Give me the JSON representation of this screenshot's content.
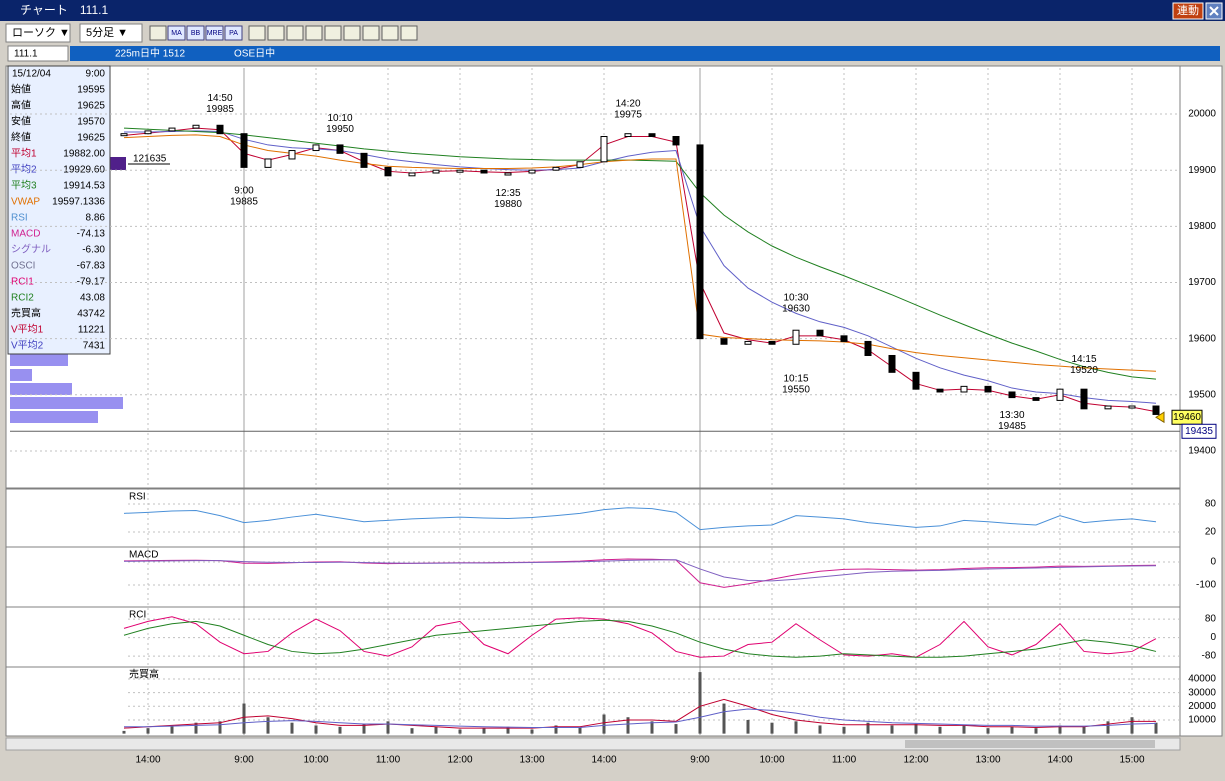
{
  "window": {
    "title": "チャート　111.1",
    "sync_button": "連動"
  },
  "toolbar": {
    "chart_type": "ローソク ▼",
    "interval": "5分足 ▼",
    "icons": [
      "MA",
      "BB",
      "MRE",
      "PA"
    ]
  },
  "symbol_bar": {
    "code": "111.1",
    "name": "225m日中 1512",
    "session": "OSE日中"
  },
  "info_panel": {
    "date": "15/12/04",
    "time": "9:00",
    "rows": [
      {
        "label": "始値",
        "value": "19595",
        "color": "#000000"
      },
      {
        "label": "高値",
        "value": "19625",
        "color": "#000000"
      },
      {
        "label": "安値",
        "value": "19570",
        "color": "#000000"
      },
      {
        "label": "終値",
        "value": "19625",
        "color": "#000000"
      },
      {
        "label": "平均1",
        "value": "19882.00",
        "color": "#c00030"
      },
      {
        "label": "平均2",
        "value": "19929.60",
        "color": "#4040c0"
      },
      {
        "label": "平均3",
        "value": "19914.53",
        "color": "#208020"
      },
      {
        "label": "VWAP",
        "value": "19597.1336",
        "color": "#e07000"
      },
      {
        "label": "RSI",
        "value": "8.86",
        "color": "#5090d0"
      },
      {
        "label": "MACD",
        "value": "-74.13",
        "color": "#d02090"
      },
      {
        "label": "シグナル",
        "value": "-6.30",
        "color": "#8060c0"
      },
      {
        "label": "OSCI",
        "value": "-67.83",
        "color": "#707090"
      },
      {
        "label": "RCI1",
        "value": "-79.17",
        "color": "#e00070"
      },
      {
        "label": "RCI2",
        "value": "43.08",
        "color": "#208020"
      },
      {
        "label": "売買高",
        "value": "43742",
        "color": "#000000"
      },
      {
        "label": "V平均1",
        "value": "11221",
        "color": "#c00030"
      },
      {
        "label": "V平均2",
        "value": "7431",
        "color": "#4040c0"
      }
    ]
  },
  "chart_data": {
    "type": "line",
    "categories": [
      null,
      "14:00",
      null,
      null,
      null,
      "9:00",
      null,
      null,
      "10:00",
      null,
      null,
      "11:00",
      null,
      null,
      "12:00",
      null,
      null,
      "13:00",
      null,
      null,
      "14:00",
      null,
      null,
      null,
      "9:00",
      null,
      null,
      "10:00",
      null,
      null,
      "11:00",
      null,
      null,
      "12:00",
      null,
      null,
      "13:00",
      null,
      null,
      "14:00",
      null,
      null,
      "15:00",
      null
    ],
    "ylim": [
      19334,
      20082
    ],
    "yticks": [
      20000,
      19900,
      19800,
      19700,
      19600,
      19500,
      19400
    ],
    "grid": true,
    "series": [
      {
        "name": "終値",
        "color": "#000000",
        "values": [
          19965,
          19970,
          19975,
          19980,
          19965,
          19905,
          19920,
          19935,
          19945,
          19930,
          19905,
          19890,
          19895,
          19900,
          19900,
          19895,
          19895,
          19900,
          19905,
          19915,
          19960,
          19965,
          19960,
          19945,
          19600,
          19590,
          19595,
          19590,
          19615,
          19605,
          19595,
          19570,
          19540,
          19510,
          19505,
          19515,
          19505,
          19495,
          19490,
          19510,
          19475,
          19480,
          19480,
          19465
        ]
      },
      {
        "name": "平均1",
        "color": "#c00030",
        "values": [
          19962,
          19966,
          19970,
          19975,
          19972,
          19930,
          19918,
          19928,
          19940,
          19935,
          19915,
          19898,
          19895,
          19898,
          19899,
          19897,
          19896,
          19898,
          19902,
          19910,
          19945,
          19960,
          19960,
          19950,
          19700,
          19610,
          19598,
          19592,
          19605,
          19605,
          19598,
          19580,
          19550,
          19520,
          19508,
          19510,
          19508,
          19498,
          19492,
          19500,
          19485,
          19480,
          19478,
          19470
        ]
      },
      {
        "name": "平均2",
        "color": "#6060c8",
        "values": [
          19968,
          19968,
          19969,
          19970,
          19969,
          19955,
          19945,
          19940,
          19938,
          19935,
          19928,
          19920,
          19915,
          19910,
          19906,
          19903,
          19901,
          19900,
          19901,
          19904,
          19915,
          19925,
          19932,
          19935,
          19800,
          19730,
          19690,
          19665,
          19645,
          19630,
          19620,
          19605,
          19585,
          19565,
          19548,
          19535,
          19525,
          19512,
          19505,
          19502,
          19495,
          19490,
          19488,
          19485
        ]
      },
      {
        "name": "平均3",
        "color": "#208020",
        "values": [
          19975,
          19973,
          19971,
          19969,
          19967,
          19963,
          19958,
          19953,
          19948,
          19943,
          19938,
          19934,
          19930,
          19927,
          19924,
          19922,
          19920,
          19919,
          19918,
          19918,
          19918,
          19918,
          19917,
          19916,
          19860,
          19820,
          19790,
          19765,
          19745,
          19728,
          19712,
          19695,
          19678,
          19660,
          19642,
          19625,
          19608,
          19592,
          19578,
          19563,
          19550,
          19540,
          19532,
          19528
        ]
      },
      {
        "name": "VWAP",
        "color": "#e07000",
        "values": [
          19958,
          19960,
          19962,
          19963,
          19960,
          19945,
          19935,
          19930,
          19925,
          19918,
          19912,
          19907,
          19905,
          19904,
          19903,
          19903,
          19903,
          19904,
          19906,
          19910,
          19915,
          19918,
          19920,
          19920,
          19608,
          19602,
          19600,
          19598,
          19597,
          19596,
          19594,
          19590,
          19582,
          19575,
          19570,
          19566,
          19562,
          19558,
          19554,
          19551,
          19548,
          19546,
          19544,
          19542
        ]
      }
    ],
    "annotations": [
      {
        "index": 4,
        "time": "14:50",
        "price": 19985,
        "side": "above"
      },
      {
        "index": 5,
        "time": "9:00",
        "price": 19885,
        "side": "below"
      },
      {
        "index": 9,
        "time": "10:10",
        "price": 19950,
        "side": "above"
      },
      {
        "index": 16,
        "time": "12:35",
        "price": 19880,
        "side": "below"
      },
      {
        "index": 21,
        "time": "14:20",
        "price": 19975,
        "side": "above"
      },
      {
        "index": 28,
        "time": "10:30",
        "price": 19630,
        "side": "above"
      },
      {
        "index": 28,
        "time": "10:15",
        "price": 19550,
        "side": "below"
      },
      {
        "index": 37,
        "time": "13:30",
        "price": 19485,
        "side": "below"
      },
      {
        "index": 40,
        "time": "14:15",
        "price": 19520,
        "side": "above"
      }
    ],
    "last_price": 19460,
    "marker_price": 19435,
    "profile_label": "121635",
    "panels": [
      {
        "label": "RSI",
        "ylim": [
          -10,
          110
        ],
        "yticks": [
          80,
          20
        ],
        "series": [
          {
            "color": "#4a90d8",
            "values": [
              60,
              62,
              65,
              66,
              55,
              40,
              45,
              52,
              58,
              50,
              42,
              45,
              48,
              50,
              52,
              50,
              49,
              51,
              55,
              60,
              68,
              72,
              70,
              62,
              25,
              30,
              33,
              35,
              55,
              52,
              48,
              40,
              35,
              30,
              33,
              45,
              42,
              38,
              35,
              55,
              40,
              45,
              48,
              42
            ]
          }
        ]
      },
      {
        "label": "MACD",
        "ylim": [
          -191,
          61
        ],
        "yticks": [
          0,
          -100
        ],
        "series": [
          {
            "color": "#d02090",
            "values": [
              5,
              6,
              7,
              8,
              6,
              -5,
              -6,
              -3,
              0,
              1,
              -4,
              -7,
              -6,
              -4,
              -3,
              -3,
              -2,
              -1,
              1,
              4,
              10,
              13,
              12,
              9,
              -90,
              -110,
              -95,
              -75,
              -55,
              -40,
              -32,
              -30,
              -33,
              -35,
              -33,
              -28,
              -25,
              -24,
              -22,
              -18,
              -19,
              -17,
              -15,
              -14
            ]
          },
          {
            "color": "#8060c0",
            "values": [
              3,
              4,
              5,
              6,
              6,
              2,
              -1,
              -2,
              -2,
              -1,
              -2,
              -4,
              -5,
              -5,
              -4,
              -4,
              -3,
              -2,
              -1,
              1,
              4,
              7,
              9,
              10,
              -30,
              -65,
              -80,
              -82,
              -75,
              -65,
              -55,
              -45,
              -40,
              -38,
              -36,
              -33,
              -30,
              -28,
              -26,
              -23,
              -21,
              -19,
              -17,
              -16
            ]
          }
        ]
      },
      {
        "label": "RCI",
        "ylim": [
          -123,
          128
        ],
        "yticks": [
          80,
          0,
          -80
        ],
        "series": [
          {
            "color": "#e00070",
            "values": [
              40,
              70,
              90,
              60,
              -20,
              -70,
              -60,
              20,
              80,
              30,
              -60,
              -80,
              -40,
              50,
              70,
              -30,
              -70,
              10,
              80,
              85,
              80,
              60,
              20,
              -60,
              -85,
              -80,
              -30,
              -20,
              60,
              -10,
              -75,
              -80,
              -70,
              -85,
              -30,
              70,
              -40,
              -75,
              -30,
              60,
              -60,
              -70,
              -60,
              -5
            ]
          },
          {
            "color": "#208020",
            "values": [
              10,
              40,
              60,
              70,
              50,
              10,
              -30,
              -60,
              -70,
              -65,
              -50,
              -30,
              -10,
              10,
              20,
              30,
              40,
              50,
              60,
              70,
              75,
              70,
              50,
              20,
              -20,
              -50,
              -70,
              -80,
              -85,
              -80,
              -70,
              -75,
              -80,
              -85,
              -85,
              -80,
              -70,
              -60,
              -50,
              -30,
              -10,
              -20,
              -35,
              -60
            ]
          }
        ]
      },
      {
        "label": "売買高",
        "ylim": [
          -1000,
          48000
        ],
        "yticks": [
          40000,
          30000,
          20000,
          10000
        ],
        "bars": {
          "color": "#555555",
          "values": [
            2000,
            4000,
            6000,
            8000,
            9000,
            22000,
            12000,
            8000,
            6000,
            5000,
            7000,
            9000,
            4000,
            5000,
            3000,
            4000,
            5000,
            3000,
            6000,
            5000,
            14000,
            12000,
            9000,
            7000,
            45000,
            22000,
            10000,
            8000,
            9000,
            6000,
            5000,
            8000,
            6000,
            7000,
            5000,
            6000,
            4000,
            5000,
            4000,
            6000,
            5000,
            9000,
            12000,
            8000
          ]
        },
        "series": [
          {
            "color": "#c00030",
            "values": [
              4000,
              5000,
              6000,
              7000,
              8000,
              12000,
              13000,
              11000,
              8000,
              6000,
              6000,
              7000,
              6000,
              5000,
              4000,
              4000,
              4000,
              4000,
              5000,
              5000,
              8000,
              10000,
              10000,
              9000,
              20000,
              25000,
              20000,
              14000,
              10000,
              8000,
              6500,
              6500,
              6500,
              6500,
              6000,
              6000,
              5000,
              5000,
              4500,
              5000,
              5000,
              7000,
              9000,
              9000
            ]
          },
          {
            "color": "#6060c8",
            "values": [
              5000,
              5000,
              5500,
              6000,
              6500,
              8000,
              9000,
              9500,
              9000,
              8000,
              7000,
              7000,
              6500,
              6000,
              5500,
              5000,
              4800,
              4500,
              4500,
              4500,
              6000,
              7000,
              8000,
              8500,
              12000,
              16000,
              18000,
              17000,
              15000,
              12000,
              10000,
              9000,
              8000,
              7500,
              7000,
              6500,
              6000,
              6000,
              5500,
              5500,
              5500,
              6000,
              7000,
              7500
            ]
          }
        ]
      }
    ]
  }
}
